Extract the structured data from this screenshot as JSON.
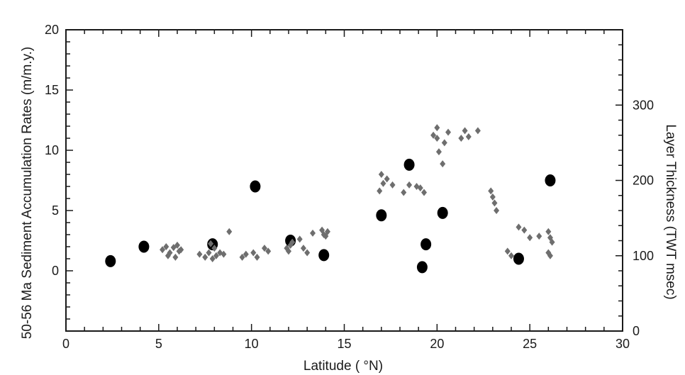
{
  "chart_data": {
    "type": "scatter",
    "title": "",
    "xlabel": "Latitude ( °N)",
    "ylabel": "50-56 Ma Sediment Accumulation Rates (m/m.y.)",
    "y2label": "Layer  Thickness (TWT msec)",
    "xlim": [
      0,
      30
    ],
    "ylim": [
      -5,
      20
    ],
    "y2lim": [
      0,
      400
    ],
    "x_ticks": [
      0,
      5,
      10,
      15,
      20,
      25,
      30
    ],
    "y_ticks": [
      0,
      5,
      10,
      15,
      20
    ],
    "y2_ticks": [
      0,
      100,
      200,
      300
    ],
    "grid": false,
    "series": [
      {
        "marker": "circle",
        "color": "#000000",
        "x": [
          2.4,
          4.2,
          7.9,
          10.2,
          12.1,
          13.9,
          17.0,
          18.5,
          19.2,
          19.4,
          20.3,
          24.4,
          26.1
        ],
        "y": [
          0.8,
          2.0,
          2.2,
          7.0,
          2.5,
          1.3,
          4.6,
          8.8,
          0.3,
          2.2,
          4.8,
          1.0,
          7.5
        ]
      },
      {
        "marker": "diamond",
        "color": "#6e6e6e",
        "axis": "right",
        "x": [
          5.2,
          5.4,
          5.6,
          5.8,
          6.0,
          6.2,
          5.5,
          5.9,
          6.1,
          7.2,
          7.5,
          7.7,
          7.9,
          8.1,
          8.3,
          8.5,
          8.8,
          7.8,
          8.0,
          9.5,
          9.7,
          10.1,
          10.3,
          10.7,
          10.9,
          11.9,
          12.0,
          12.1,
          12.2,
          12.6,
          12.8,
          13.0,
          13.3,
          13.8,
          13.9,
          14.0,
          14.1,
          17.0,
          17.1,
          16.9,
          17.3,
          17.6,
          18.2,
          18.5,
          18.9,
          19.1,
          19.3,
          19.8,
          20.0,
          20.0,
          20.1,
          20.3,
          20.4,
          20.6,
          21.3,
          21.5,
          21.7,
          22.2,
          22.9,
          23.0,
          23.1,
          23.2,
          23.8,
          24.0,
          24.4,
          24.7,
          25.0,
          25.5,
          26.0,
          26.1,
          26.2,
          26.0,
          26.1
        ],
        "y": [
          108,
          112,
          104,
          111,
          114,
          108,
          100,
          98,
          106,
          102,
          98,
          104,
          96,
          100,
          104,
          102,
          132,
          116,
          110,
          98,
          102,
          104,
          98,
          110,
          106,
          110,
          106,
          114,
          118,
          122,
          110,
          104,
          130,
          134,
          128,
          126,
          132,
          208,
          196,
          186,
          202,
          194,
          184,
          194,
          192,
          190,
          184,
          260,
          270,
          256,
          238,
          222,
          250,
          264,
          256,
          266,
          258,
          266,
          186,
          178,
          170,
          160,
          106,
          100,
          138,
          134,
          124,
          126,
          132,
          124,
          118,
          104,
          100
        ]
      }
    ]
  }
}
